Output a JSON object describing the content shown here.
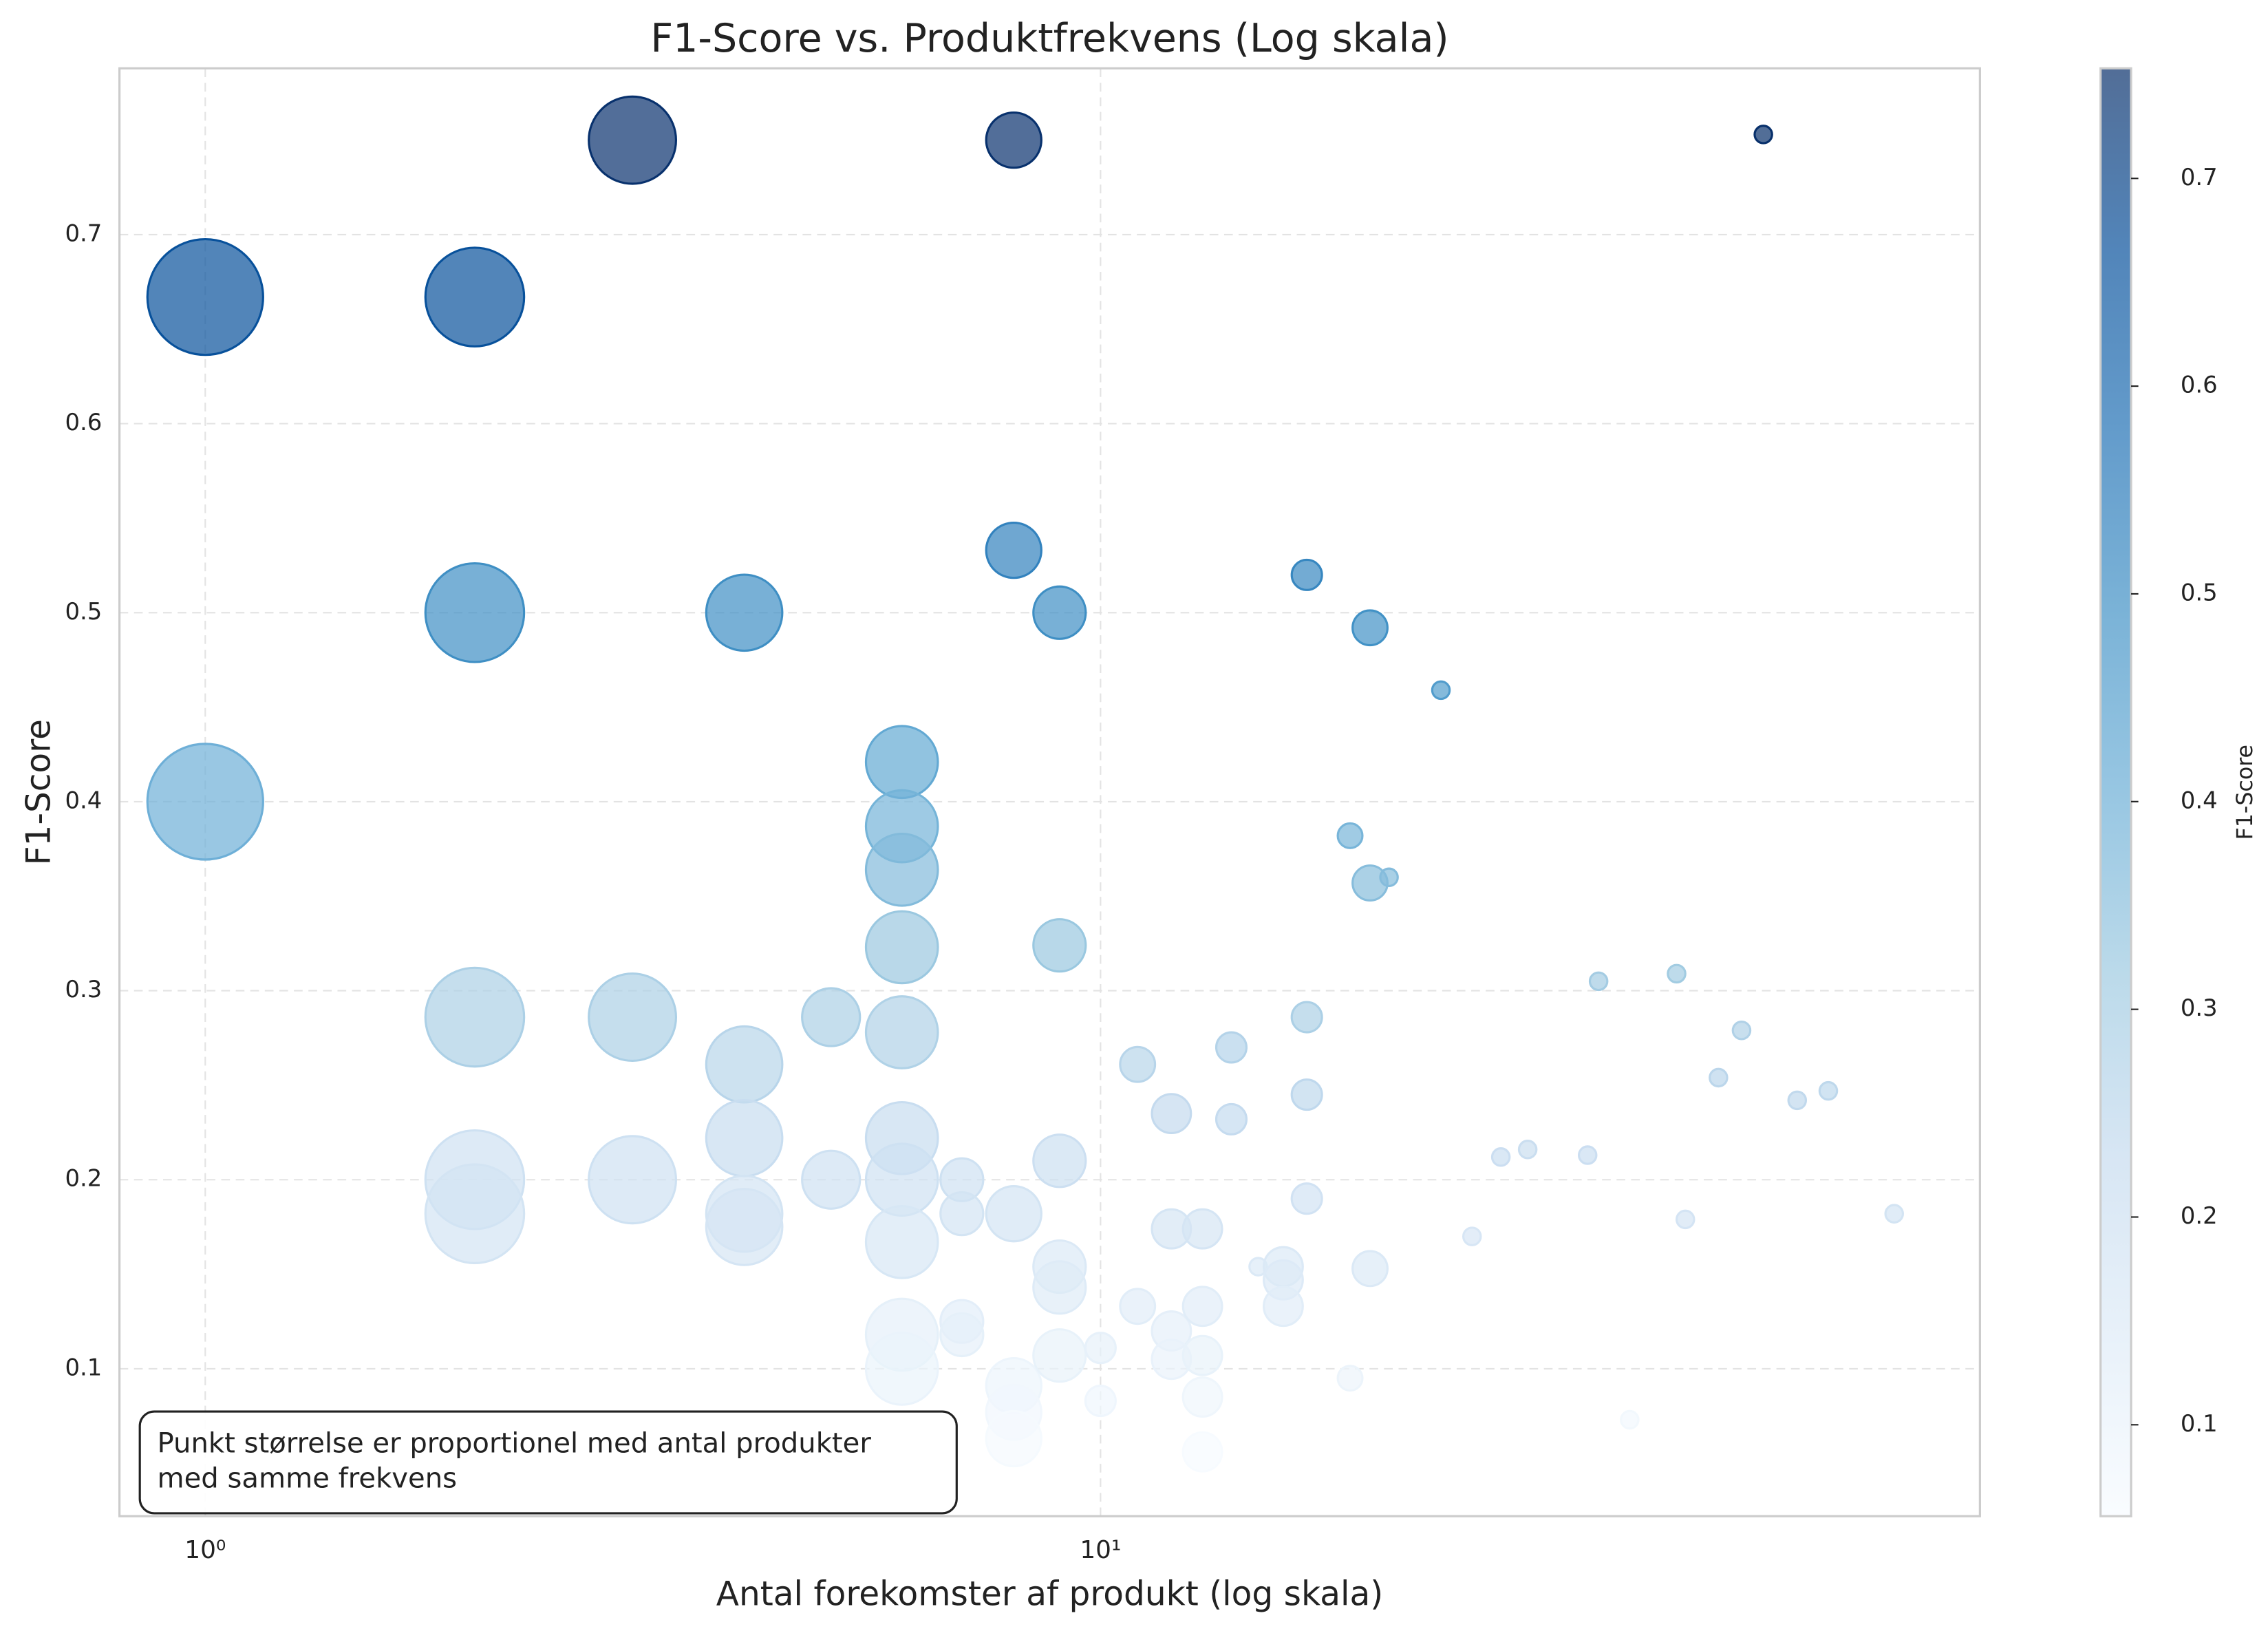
{
  "chart_data": {
    "type": "scatter",
    "title": "F1-Score vs. Produktfrekvens (Log skala)",
    "x_label": "Antal forekomster af produkt (log skala)",
    "y_label": "F1-Score",
    "colorbar_label": "F1-Score",
    "annotation": [
      "Punkt størrelse er proportionel med antal produkter",
      "med samme frekvens"
    ],
    "x_scale": "log",
    "grid": true,
    "xlim": [
      0.802,
      96
    ],
    "ylim": [
      0.022,
      0.788
    ],
    "xticks": [
      {
        "value": 1,
        "label": "10⁰"
      },
      {
        "value": 10,
        "label": "10¹"
      }
    ],
    "yticks": [
      0.1,
      0.2,
      0.3,
      0.4,
      0.5,
      0.6,
      0.7
    ],
    "colormap": [
      "#f7fbff",
      "#deebf7",
      "#c6dbef",
      "#9ecae1",
      "#6baed6",
      "#4292c6",
      "#2171b5",
      "#08519c",
      "#08306b"
    ],
    "clim": [
      0.056,
      0.753
    ],
    "cticks": [
      0.1,
      0.2,
      0.3,
      0.4,
      0.5,
      0.6,
      0.7
    ],
    "x": [
      1,
      1,
      2,
      2,
      2,
      2,
      2,
      3,
      3,
      3,
      4,
      4,
      4,
      4,
      4,
      5,
      5,
      6,
      6,
      6,
      6,
      6,
      6,
      6,
      6,
      6,
      6,
      7,
      7,
      7,
      7,
      8,
      8,
      8,
      8,
      8,
      8,
      9,
      9,
      9,
      9,
      9,
      9,
      10,
      10,
      11,
      11,
      12,
      12,
      12,
      12,
      13,
      13,
      13,
      13,
      13,
      14,
      14,
      15,
      16,
      16,
      16,
      17,
      17,
      17,
      17,
      19,
      19,
      20,
      20,
      20,
      21,
      24,
      26,
      28,
      30,
      35,
      36,
      39,
      44,
      45,
      49,
      52,
      55,
      60,
      65,
      77
    ],
    "values": [
      0.667,
      0.4,
      0.667,
      0.5,
      0.286,
      0.2,
      0.182,
      0.75,
      0.286,
      0.2,
      0.5,
      0.261,
      0.222,
      0.182,
      0.175,
      0.286,
      0.2,
      0.421,
      0.387,
      0.364,
      0.323,
      0.278,
      0.222,
      0.2,
      0.167,
      0.118,
      0.1,
      0.2,
      0.182,
      0.125,
      0.118,
      0.75,
      0.533,
      0.182,
      0.091,
      0.077,
      0.063,
      0.5,
      0.324,
      0.21,
      0.154,
      0.143,
      0.107,
      0.111,
      0.083,
      0.261,
      0.133,
      0.235,
      0.174,
      0.12,
      0.105,
      0.174,
      0.133,
      0.107,
      0.085,
      0.056,
      0.27,
      0.232,
      0.154,
      0.154,
      0.147,
      0.133,
      0.52,
      0.286,
      0.245,
      0.19,
      0.382,
      0.095,
      0.492,
      0.357,
      0.153,
      0.36,
      0.459,
      0.17,
      0.212,
      0.216,
      0.213,
      0.305,
      0.073,
      0.309,
      0.179,
      0.254,
      0.279,
      0.753,
      0.242,
      0.247,
      0.182
    ],
    "sizes": [
      44,
      44,
      32,
      32,
      32,
      32,
      32,
      25,
      25,
      25,
      19,
      19,
      19,
      19,
      19,
      11,
      11,
      17,
      17,
      17,
      17,
      17,
      17,
      17,
      17,
      17,
      17,
      6,
      6,
      6,
      6,
      10,
      10,
      10,
      10,
      10,
      10,
      9,
      9,
      9,
      9,
      9,
      9,
      3,
      3,
      4,
      4,
      5,
      5,
      5,
      5,
      5,
      5,
      5,
      5,
      5,
      3,
      3,
      1,
      5,
      5,
      5,
      3,
      3,
      3,
      3,
      2,
      2,
      4,
      4,
      4,
      1,
      1,
      1,
      1,
      1,
      1,
      1,
      1,
      1,
      1,
      1,
      1,
      1,
      1,
      1,
      1
    ]
  }
}
